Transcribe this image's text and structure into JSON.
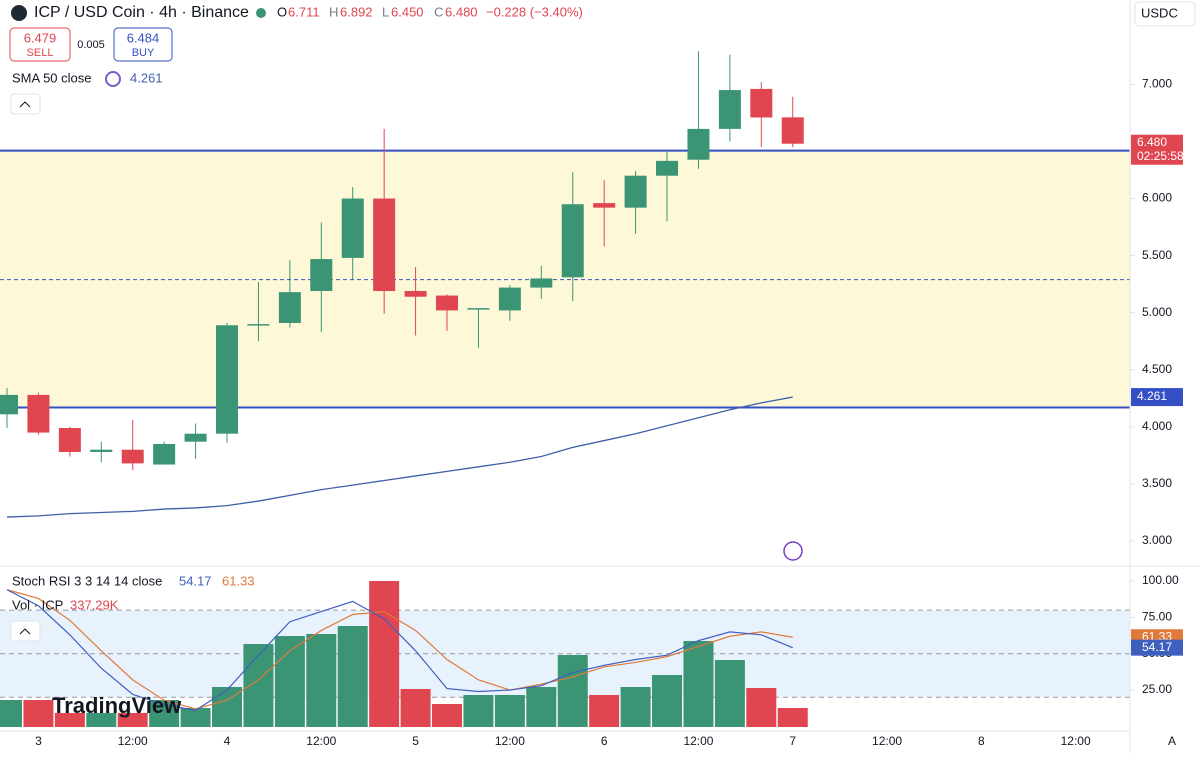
{
  "header": {
    "title": "ICP / USD Coin · 4h · Binance",
    "o_label": "O",
    "o": "6.711",
    "h_label": "H",
    "h": "6.892",
    "l_label": "L",
    "l": "6.450",
    "c_label": "C",
    "c": "6.480",
    "change": "−0.228 (−3.40%)",
    "currency": "USDC"
  },
  "trade": {
    "sell_price": "6.479",
    "sell": "SELL",
    "spread": "0.005",
    "buy_price": "6.484",
    "buy": "BUY"
  },
  "logo": "TradingView",
  "auto": "A",
  "chart_data": [
    {
      "type": "candlestick",
      "up_color": "#3b9474",
      "down_color": "#e0464f",
      "open": [
        4.11,
        4.28,
        3.99,
        3.78,
        3.8,
        3.67,
        3.87,
        3.94,
        4.89,
        4.91,
        5.19,
        5.48,
        6.0,
        5.19,
        5.15,
        5.03,
        5.02,
        5.22,
        5.31,
        5.96,
        5.92,
        6.2,
        6.34,
        6.61,
        6.96,
        6.711
      ],
      "high": [
        4.34,
        4.3,
        4.0,
        3.87,
        4.06,
        3.87,
        4.03,
        4.91,
        5.27,
        5.46,
        5.79,
        6.1,
        6.61,
        5.4,
        5.16,
        5.04,
        5.24,
        5.41,
        6.23,
        6.16,
        6.24,
        6.42,
        7.29,
        7.26,
        7.02,
        6.892
      ],
      "low": [
        3.99,
        3.93,
        3.74,
        3.69,
        3.62,
        3.67,
        3.72,
        3.86,
        4.75,
        4.87,
        4.83,
        5.29,
        4.99,
        4.8,
        4.84,
        4.69,
        4.93,
        5.12,
        5.1,
        5.58,
        5.69,
        5.8,
        6.26,
        6.5,
        6.45,
        6.45
      ],
      "close": [
        4.28,
        3.95,
        3.78,
        3.8,
        3.68,
        3.85,
        3.94,
        4.89,
        4.9,
        5.18,
        5.47,
        6.0,
        5.19,
        5.14,
        5.02,
        5.04,
        5.22,
        5.3,
        5.95,
        5.92,
        6.2,
        6.33,
        6.61,
        6.95,
        6.71,
        6.48
      ],
      "ylim": [
        2.79,
        7.52
      ],
      "yticks": [
        {
          "value": 3,
          "label": "3.000"
        },
        {
          "value": 3.5,
          "label": "3.500"
        },
        {
          "value": 4,
          "label": "4.000"
        },
        {
          "value": 4.5,
          "label": "4.500"
        },
        {
          "value": 5,
          "label": "5.000"
        },
        {
          "value": 5.5,
          "label": "5.500"
        },
        {
          "value": 6,
          "label": "6.000"
        },
        {
          "value": 6.5,
          "label": "6.500"
        },
        {
          "value": 7,
          "label": "7.000"
        }
      ],
      "levels": {
        "top": 6.42,
        "mid": 5.29,
        "bottom": 4.17,
        "color": "#3550c4",
        "fill": "#fdf8d8"
      },
      "sma": {
        "name": "SMA 50 close",
        "value_label": "4.261",
        "color": "#3f5fa8",
        "values": [
          3.21,
          3.22,
          3.24,
          3.25,
          3.26,
          3.28,
          3.29,
          3.31,
          3.35,
          3.4,
          3.45,
          3.49,
          3.53,
          3.57,
          3.61,
          3.65,
          3.69,
          3.74,
          3.82,
          3.88,
          3.94,
          4.01,
          4.08,
          4.15,
          4.21,
          4.261
        ]
      },
      "last_price_label": "6.480",
      "countdown": "02:25:58",
      "x_labels": [
        "3",
        "12:00",
        "4",
        "12:00",
        "5",
        "12:00",
        "6",
        "12:00",
        "7",
        "12:00",
        "8",
        "12:00"
      ]
    },
    {
      "type": "stoch_volume",
      "title": "Stoch RSI 3 3 14 14 close",
      "k": {
        "values": [
          94,
          83,
          63,
          40,
          22,
          15,
          11,
          25,
          49,
          72,
          79,
          86,
          74,
          52,
          26,
          24,
          25,
          28,
          37,
          42,
          46,
          49,
          59,
          65,
          63,
          54.17
        ],
        "value_label": "54.17",
        "color": "#3f5fbf"
      },
      "d": {
        "values": [
          94,
          88,
          73,
          52,
          32,
          18,
          12,
          18,
          32,
          52,
          66,
          77,
          79,
          66,
          46,
          32,
          25,
          29,
          34,
          41,
          44,
          48,
          55,
          62,
          65,
          61.33
        ],
        "value_label": "61.33",
        "color": "#e07a3a"
      },
      "ylim": [
        -2.5,
        107.6
      ],
      "yticks": [
        {
          "value": 25,
          "label": "25.00"
        },
        {
          "value": 50,
          "label": "50.00"
        },
        {
          "value": 75,
          "label": "75.00"
        },
        {
          "value": 100,
          "label": "100.00"
        }
      ],
      "bands": {
        "upper": 80,
        "middle": 50,
        "lower": 20,
        "fill": "#e8f2fc"
      },
      "volume": {
        "name": "Vol · ICP",
        "value_label": "337.29K",
        "vlim": [
          0,
          2876
        ],
        "values": [
          479,
          479,
          249,
          249,
          249,
          479,
          337,
          710,
          1473,
          1615,
          1651,
          1793,
          2592,
          675,
          408,
          568,
          568,
          710,
          1278,
          568,
          710,
          923,
          1527,
          1189,
          692,
          337.29
        ]
      }
    }
  ]
}
